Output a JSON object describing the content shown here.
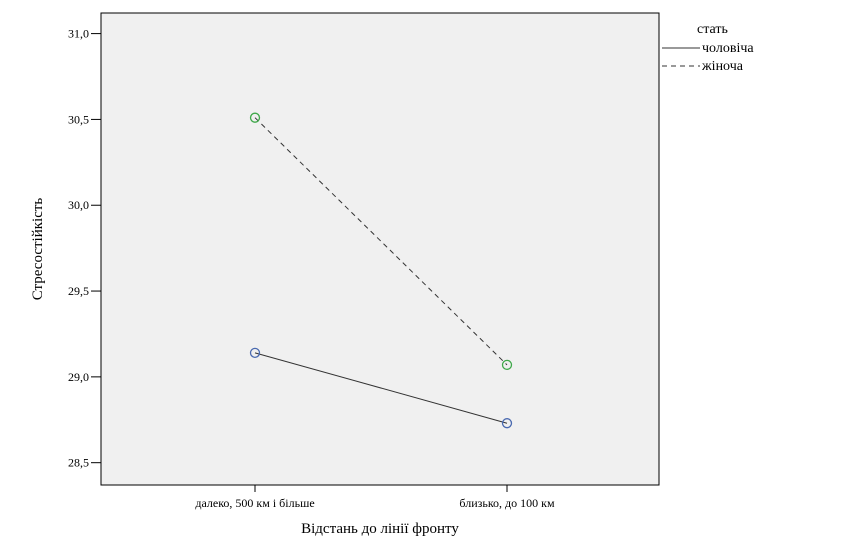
{
  "chart_data": {
    "type": "line",
    "xlabel": "Відстань до лінії фронту",
    "ylabel": "Стресостійкість",
    "categories": [
      "далеко, 500 км і більше",
      "близько, до 100 км"
    ],
    "ylim": [
      28.37,
      31.12
    ],
    "yticks": [
      28.5,
      29.0,
      29.5,
      30.0,
      30.5,
      31.0
    ],
    "ytick_labels": [
      "28,5",
      "29,0",
      "29,5",
      "30,0",
      "30,5",
      "31,0"
    ],
    "grid": false,
    "legend": {
      "title": "стать",
      "placement": "top-right-outside"
    },
    "series": [
      {
        "name": "чоловіча",
        "values": [
          29.14,
          28.73
        ],
        "line_style": "solid",
        "marker_color": "#4a6ab0"
      },
      {
        "name": "жіноча",
        "values": [
          30.51,
          29.07
        ],
        "line_style": "dashed",
        "marker_color": "#3fa84a"
      }
    ],
    "plot_background": "#f0f0f0"
  }
}
